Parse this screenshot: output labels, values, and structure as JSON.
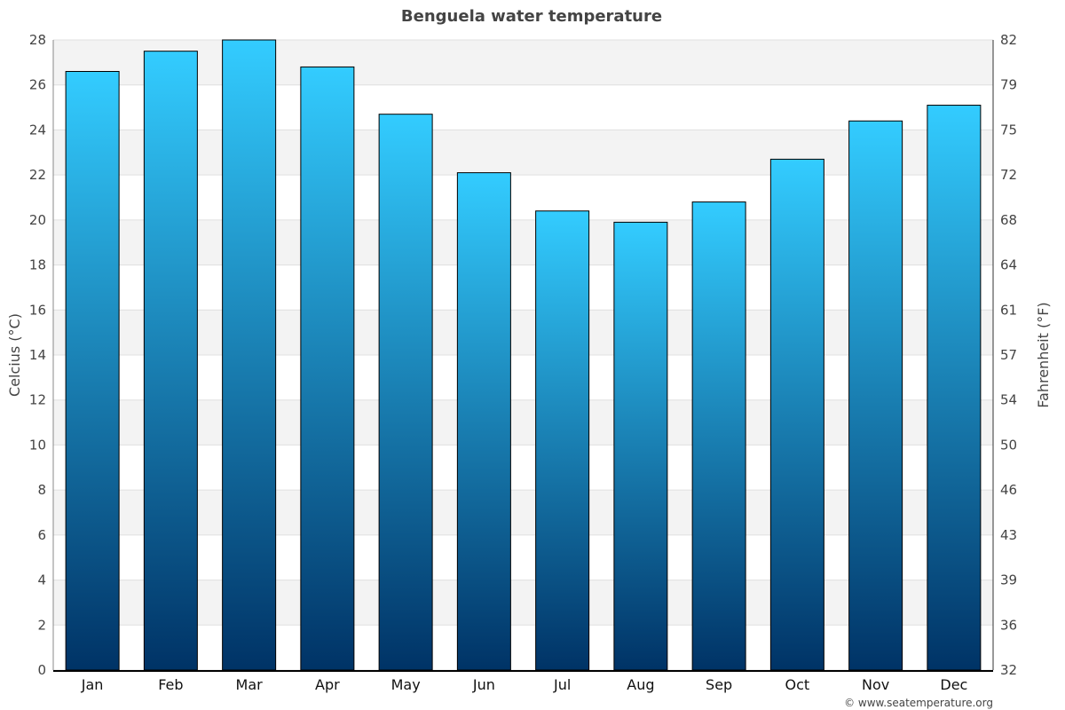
{
  "chart_data": {
    "type": "bar",
    "title": "Benguela water temperature",
    "categories": [
      "Jan",
      "Feb",
      "Mar",
      "Apr",
      "May",
      "Jun",
      "Jul",
      "Aug",
      "Sep",
      "Oct",
      "Nov",
      "Dec"
    ],
    "values": [
      26.6,
      27.5,
      28.0,
      26.8,
      24.7,
      22.1,
      20.4,
      19.9,
      20.8,
      22.7,
      24.4,
      25.1
    ],
    "ylabel": "Celcius (°C)",
    "ylabel_right": "Fahrenheit (°F)",
    "ylim": [
      0,
      28
    ],
    "yticks": [
      0,
      2,
      4,
      6,
      8,
      10,
      12,
      14,
      16,
      18,
      20,
      22,
      24,
      26,
      28
    ],
    "yticks_right": [
      32,
      36,
      39,
      43,
      46,
      50,
      54,
      57,
      61,
      64,
      68,
      72,
      75,
      79,
      82
    ],
    "grid": true,
    "legend": "none",
    "bar_gradient": [
      "#33ccff",
      "#003366"
    ],
    "band_color": "#f3f3f3"
  },
  "credit": "© www.seatemperature.org"
}
